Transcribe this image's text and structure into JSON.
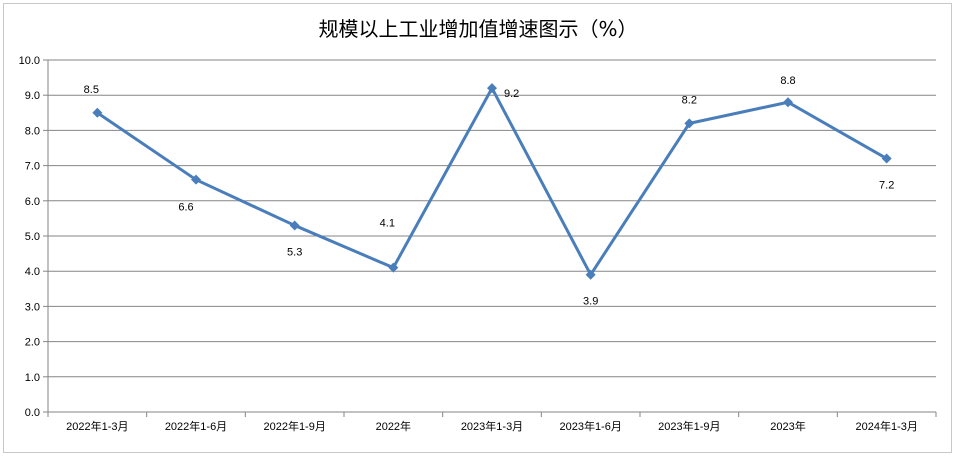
{
  "chart_data": {
    "type": "line",
    "title": "规模以上工业增加值增速图示（%）",
    "categories": [
      "2022年1-3月",
      "2022年1-6月",
      "2022年1-9月",
      "2022年",
      "2023年1-3月",
      "2023年1-6月",
      "2023年1-9月",
      "2023年",
      "2024年1-3月"
    ],
    "series": [
      {
        "values": [
          8.5,
          6.6,
          5.3,
          4.1,
          9.2,
          3.9,
          8.2,
          8.8,
          7.2
        ]
      }
    ],
    "data_labels": [
      "8.5",
      "6.6",
      "5.3",
      "4.1",
      "9.2",
      "3.9",
      "8.2",
      "8.8",
      "7.2"
    ],
    "y_ticks": [
      "0.0",
      "1.0",
      "2.0",
      "3.0",
      "4.0",
      "5.0",
      "6.0",
      "7.0",
      "8.0",
      "9.0",
      "10.0"
    ],
    "ylim": [
      0,
      10
    ],
    "grid": true,
    "legend": "none",
    "colors": {
      "line": "#4a7ebb",
      "grid": "#868686",
      "axis": "#868686"
    }
  }
}
